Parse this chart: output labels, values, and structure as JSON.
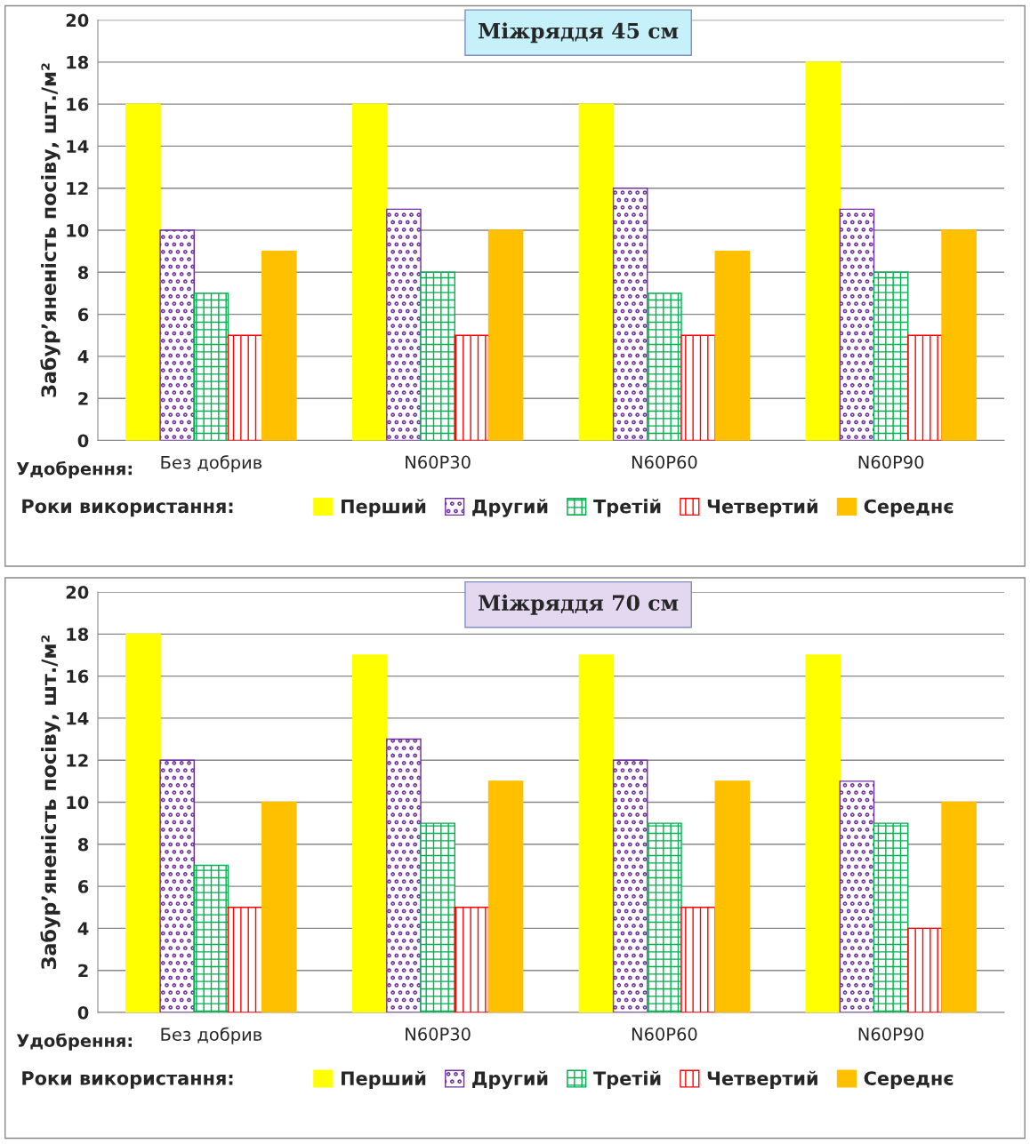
{
  "chart_data": [
    {
      "type": "bar",
      "title": "Міжряддя 45 см",
      "ylabel": "Забур’яненість посіву, шт./м²",
      "xlabel": "Удобрення:",
      "legend_title": "Роки використання:",
      "categories": [
        "Без добрив",
        "N60P30",
        "N60P60",
        "N60P90"
      ],
      "ylim": [
        0,
        20
      ],
      "yticks": [
        0,
        2,
        4,
        6,
        8,
        10,
        12,
        14,
        16,
        18,
        20
      ],
      "grid": "y",
      "legend": "bottom",
      "series": [
        {
          "name": "Перший",
          "color": "#ffff00",
          "values": [
            16,
            16,
            16,
            18
          ]
        },
        {
          "name": "Другий",
          "color": "#7030a0",
          "values": [
            10,
            11,
            12,
            11
          ]
        },
        {
          "name": "Третій",
          "color": "#00b050",
          "values": [
            7,
            8,
            7,
            8
          ]
        },
        {
          "name": "Четвертий",
          "color": "#ff0000",
          "values": [
            5,
            5,
            5,
            5
          ]
        },
        {
          "name": "Середнє",
          "color": "#ffc000",
          "values": [
            9,
            10,
            9,
            10
          ]
        }
      ]
    },
    {
      "type": "bar",
      "title": "Міжряддя 70 см",
      "ylabel": "Забур’яненість посіву, шт./м²",
      "xlabel": "Удобрення:",
      "legend_title": "Роки використання:",
      "categories": [
        "Без добрив",
        "N60P30",
        "N60P60",
        "N60P90"
      ],
      "ylim": [
        0,
        20
      ],
      "yticks": [
        0,
        2,
        4,
        6,
        8,
        10,
        12,
        14,
        16,
        18,
        20
      ],
      "grid": "y",
      "legend": "bottom",
      "series": [
        {
          "name": "Перший",
          "color": "#ffff00",
          "values": [
            18,
            17,
            17,
            17
          ]
        },
        {
          "name": "Другий",
          "color": "#7030a0",
          "values": [
            12,
            13,
            12,
            11
          ]
        },
        {
          "name": "Третій",
          "color": "#00b050",
          "values": [
            7,
            9,
            9,
            9
          ]
        },
        {
          "name": "Четвертий",
          "color": "#ff0000",
          "values": [
            5,
            5,
            5,
            4
          ]
        },
        {
          "name": "Середнє",
          "color": "#ffc000",
          "values": [
            10,
            11,
            11,
            10
          ]
        }
      ]
    }
  ]
}
